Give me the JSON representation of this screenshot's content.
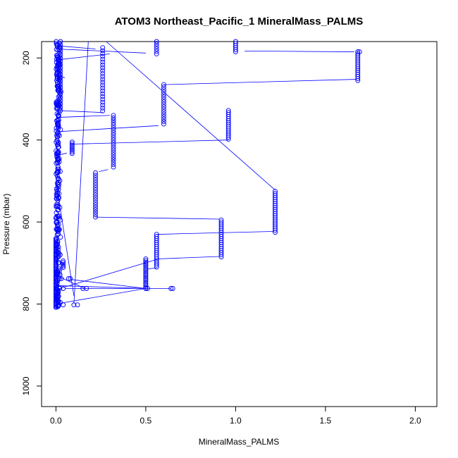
{
  "chart_data": {
    "type": "scatter",
    "title": "ATOM3 Northeast_Pacific_1 MineralMass_PALMS",
    "xlabel": "MineralMass_PALMS",
    "ylabel": "Pressure (mbar)",
    "xlim": [
      -0.08,
      2.12
    ],
    "ylim": [
      1050,
      160
    ],
    "y_reversed": true,
    "x_ticks": [
      0.0,
      0.5,
      1.0,
      1.5,
      2.0
    ],
    "x_tick_labels": [
      "0.0",
      "0.5",
      "1.0",
      "1.5",
      "2.0"
    ],
    "y_ticks": [
      200,
      400,
      600,
      800,
      1000
    ],
    "y_tick_labels": [
      "200",
      "400",
      "600",
      "800",
      "1000"
    ],
    "grid": false,
    "legend": "none",
    "marker": "open-circle",
    "colors": {
      "series": "#0000ff",
      "axis": "#000000"
    },
    "series": [
      {
        "columns": [
          {
            "x": 0.22,
            "y0": 480,
            "y1": 590,
            "step": 6
          },
          {
            "x": 0.26,
            "y0": 175,
            "y1": 335,
            "step": 7
          },
          {
            "x": 0.32,
            "y0": 340,
            "y1": 470,
            "step": 6
          },
          {
            "x": 0.56,
            "y0": 160,
            "y1": 190,
            "step": 6
          },
          {
            "x": 0.56,
            "y0": 630,
            "y1": 710,
            "step": 5
          },
          {
            "x": 0.5,
            "y0": 690,
            "y1": 762,
            "step": 4
          },
          {
            "x": 0.6,
            "y0": 265,
            "y1": 365,
            "step": 6
          },
          {
            "x": 0.92,
            "y0": 595,
            "y1": 685,
            "step": 5
          },
          {
            "x": 0.96,
            "y0": 328,
            "y1": 400,
            "step": 5
          },
          {
            "x": 1.0,
            "y0": 160,
            "y1": 185,
            "step": 5
          },
          {
            "x": 1.22,
            "y0": 525,
            "y1": 625,
            "step": 5
          },
          {
            "x": 1.68,
            "y0": 185,
            "y1": 255,
            "step": 5
          },
          {
            "x": 0.09,
            "y0": 405,
            "y1": 435,
            "step": 4
          },
          {
            "x": 0.04,
            "y0": 695,
            "y1": 712,
            "step": 4
          }
        ],
        "points": [
          [
            0.0,
            808
          ],
          [
            0.0,
            805
          ],
          [
            0.0,
            800
          ],
          [
            0.04,
            802
          ],
          [
            0.1,
            802
          ],
          [
            0.12,
            802
          ],
          [
            0.5,
            762
          ],
          [
            0.51,
            762
          ],
          [
            0.64,
            762
          ],
          [
            0.65,
            762
          ],
          [
            0.15,
            762
          ],
          [
            0.17,
            762
          ],
          [
            0.04,
            762
          ],
          [
            0.02,
            762
          ],
          [
            0.07,
            738
          ],
          [
            0.08,
            738
          ],
          [
            0.02,
            738
          ],
          [
            0.03,
            738
          ],
          [
            1.68,
            185
          ],
          [
            1.69,
            185
          ]
        ],
        "segments": [
          [
            0.0,
            170,
            0.22,
            178
          ],
          [
            0.0,
            205,
            0.3,
            190
          ],
          [
            0.0,
            240,
            0.05,
            248
          ],
          [
            0.0,
            328,
            0.26,
            333
          ],
          [
            0.0,
            345,
            0.3,
            340
          ],
          [
            0.0,
            380,
            0.57,
            365
          ],
          [
            0.0,
            438,
            0.06,
            432
          ],
          [
            0.09,
            410,
            0.96,
            400
          ],
          [
            0.6,
            265,
            1.67,
            252
          ],
          [
            1.05,
            183,
            1.66,
            185
          ],
          [
            0.0,
            178,
            0.5,
            188
          ],
          [
            0.24,
            477,
            0.29,
            472
          ],
          [
            0.22,
            588,
            0.91,
            593
          ],
          [
            0.56,
            630,
            1.21,
            623
          ],
          [
            0.56,
            690,
            0.91,
            684
          ],
          [
            0.5,
            715,
            0.56,
            712
          ],
          [
            0.0,
            765,
            0.57,
            690
          ],
          [
            0.0,
            755,
            0.5,
            762
          ],
          [
            0.05,
            762,
            0.64,
            762
          ],
          [
            0.0,
            800,
            0.5,
            762
          ],
          [
            0.1,
            800,
            0.18,
            160
          ],
          [
            0.0,
            730,
            0.16,
            762
          ],
          [
            0.28,
            160,
            1.22,
            522
          ],
          [
            0.0,
            790,
            0.04,
            700
          ],
          [
            0.08,
            740,
            0.5,
            762
          ],
          [
            0.1,
            780,
            0.0,
            500
          ]
        ]
      }
    ]
  }
}
